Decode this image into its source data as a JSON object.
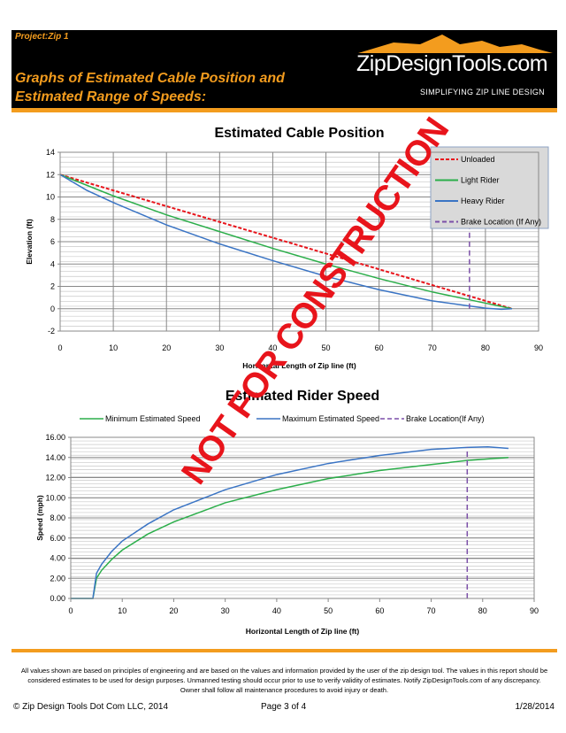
{
  "header": {
    "project": "Project:Zip 1",
    "title_line1": "Graphs of Estimated Cable Position and",
    "title_line2": "Estimated Range of Speeds:",
    "logo": "ZipDesignTools.com",
    "tagline": "SIMPLIFYING ZIP LINE DESIGN"
  },
  "watermark": "NOT FOR CONSTRUCTION",
  "colors": {
    "accent": "#f39c1e",
    "unloaded": "#e8141b",
    "light": "#2bae4a",
    "heavy": "#3a74c4",
    "brake": "#7b4fa8"
  },
  "chart_data": [
    {
      "type": "line",
      "title": "Estimated Cable Position",
      "xlabel": "Horizontal Length of Zip line (ft)",
      "ylabel": "Elevation (ft)",
      "xlim": [
        0,
        90
      ],
      "ylim": [
        -2,
        14
      ],
      "xticks": [
        0,
        10,
        20,
        30,
        40,
        50,
        60,
        70,
        80,
        90
      ],
      "yticks": [
        -2,
        0,
        2,
        4,
        6,
        8,
        10,
        12,
        14
      ],
      "legend": "top-right",
      "series": [
        {
          "name": "Unloaded",
          "style": "dashed",
          "x": [
            0,
            85
          ],
          "y": [
            12,
            0
          ]
        },
        {
          "name": "Light Rider",
          "x": [
            0,
            10,
            20,
            30,
            40,
            50,
            60,
            70,
            80,
            85
          ],
          "y": [
            12,
            10.1,
            8.4,
            6.9,
            5.4,
            4.0,
            2.7,
            1.5,
            0.5,
            0
          ]
        },
        {
          "name": "Heavy Rider",
          "x": [
            0,
            5,
            10,
            20,
            30,
            40,
            50,
            60,
            70,
            80,
            83,
            85
          ],
          "y": [
            12,
            10.6,
            9.5,
            7.5,
            5.8,
            4.3,
            2.9,
            1.7,
            0.7,
            0.05,
            -0.05,
            0
          ]
        },
        {
          "name": "Brake Location (If Any)",
          "style": "dashed",
          "x": [
            77,
            77
          ],
          "y": [
            0,
            12.5
          ]
        }
      ]
    },
    {
      "type": "line",
      "title": "Estimated Rider Speed",
      "xlabel": "Horizontal Length of Zip line (ft)",
      "ylabel": "Speed (mph)",
      "xlim": [
        0,
        90
      ],
      "ylim": [
        0,
        16
      ],
      "xticks": [
        0,
        10,
        20,
        30,
        40,
        50,
        60,
        70,
        80,
        90
      ],
      "yticks": [
        "0.00",
        "2.00",
        "4.00",
        "6.00",
        "8.00",
        "10.00",
        "12.00",
        "14.00",
        "16.00"
      ],
      "legend": "top",
      "series": [
        {
          "name": "Minimum Estimated Speed",
          "x": [
            0,
            4.3,
            5,
            6,
            8,
            10,
            15,
            20,
            30,
            40,
            50,
            60,
            70,
            77,
            85
          ],
          "y": [
            0,
            0,
            2.0,
            2.8,
            3.9,
            4.8,
            6.4,
            7.6,
            9.5,
            10.8,
            11.9,
            12.7,
            13.3,
            13.7,
            14.0
          ]
        },
        {
          "name": "Maximum Estimated Speed",
          "x": [
            0,
            4.3,
            5,
            6,
            8,
            10,
            15,
            20,
            30,
            40,
            50,
            60,
            70,
            77,
            81,
            85
          ],
          "y": [
            0,
            0,
            2.5,
            3.4,
            4.7,
            5.7,
            7.4,
            8.8,
            10.8,
            12.3,
            13.4,
            14.2,
            14.8,
            15.0,
            15.05,
            14.9
          ]
        },
        {
          "name": "Brake Location(If Any)",
          "style": "dashed",
          "x": [
            77,
            77
          ],
          "y": [
            0,
            15
          ]
        }
      ]
    }
  ],
  "footer": {
    "disclaimer_1": "All values shown are based on principles of engineering and are based on the values and information provided by the user of the zip design tool.  The values in this report should be",
    "disclaimer_2": "considered estimates to be used for design purposes.  Unmanned testing should occur prior to use to verify validity of estimates.  Notify ZipDesignTools.com of any discrepancy.",
    "disclaimer_3": "Owner shall follow all maintenance procedures to avoid injury or death.",
    "copyright": "© Zip Design Tools Dot Com LLC, 2014",
    "page": "Page 3 of 4",
    "date": "1/28/2014"
  }
}
